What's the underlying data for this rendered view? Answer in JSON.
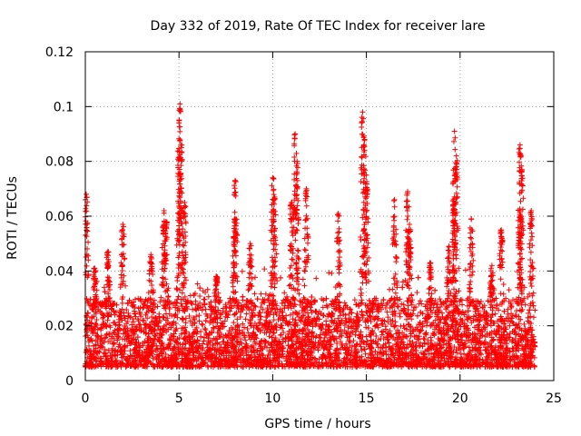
{
  "chart_data": {
    "type": "scatter",
    "title": "Day 332 of 2019, Rate Of TEC Index for receiver lare",
    "xlabel": "GPS time / hours",
    "ylabel": "ROTI / TECUs",
    "xlim": [
      0,
      25
    ],
    "ylim": [
      0,
      0.12
    ],
    "xticks": [
      0,
      5,
      10,
      15,
      20,
      25
    ],
    "xtick_labels": [
      "0",
      "5",
      "10",
      "15",
      "20",
      "25"
    ],
    "yticks": [
      0,
      0.02,
      0.04,
      0.06,
      0.08,
      0.1,
      0.12
    ],
    "ytick_labels": [
      "0",
      "0.02",
      "0.04",
      "0.06",
      "0.08",
      "0.1",
      "0.12"
    ],
    "grid": true,
    "marker": "+",
    "series": [
      {
        "name": "ROTI",
        "color": "#ff0000",
        "x_range": [
          0,
          24
        ],
        "baseline_band": [
          0.005,
          0.03
        ],
        "peaks": [
          {
            "x": 0.05,
            "y": 0.068
          },
          {
            "x": 0.5,
            "y": 0.041
          },
          {
            "x": 1.2,
            "y": 0.047
          },
          {
            "x": 2.0,
            "y": 0.057
          },
          {
            "x": 3.5,
            "y": 0.046
          },
          {
            "x": 4.2,
            "y": 0.062
          },
          {
            "x": 4.3,
            "y": 0.058
          },
          {
            "x": 5.0,
            "y": 0.094
          },
          {
            "x": 5.05,
            "y": 0.101
          },
          {
            "x": 5.1,
            "y": 0.086
          },
          {
            "x": 5.3,
            "y": 0.065
          },
          {
            "x": 7.0,
            "y": 0.038
          },
          {
            "x": 8.0,
            "y": 0.073
          },
          {
            "x": 8.0,
            "y": 0.059
          },
          {
            "x": 8.8,
            "y": 0.05
          },
          {
            "x": 10.0,
            "y": 0.074
          },
          {
            "x": 10.1,
            "y": 0.067
          },
          {
            "x": 11.0,
            "y": 0.065
          },
          {
            "x": 11.2,
            "y": 0.09
          },
          {
            "x": 11.3,
            "y": 0.08
          },
          {
            "x": 11.8,
            "y": 0.07
          },
          {
            "x": 13.5,
            "y": 0.061
          },
          {
            "x": 14.8,
            "y": 0.098
          },
          {
            "x": 14.9,
            "y": 0.088
          },
          {
            "x": 15.0,
            "y": 0.075
          },
          {
            "x": 16.5,
            "y": 0.066
          },
          {
            "x": 17.2,
            "y": 0.069
          },
          {
            "x": 17.3,
            "y": 0.057
          },
          {
            "x": 18.4,
            "y": 0.043
          },
          {
            "x": 19.4,
            "y": 0.049
          },
          {
            "x": 19.7,
            "y": 0.091
          },
          {
            "x": 19.8,
            "y": 0.082
          },
          {
            "x": 19.7,
            "y": 0.067
          },
          {
            "x": 20.6,
            "y": 0.059
          },
          {
            "x": 21.7,
            "y": 0.042
          },
          {
            "x": 22.2,
            "y": 0.055
          },
          {
            "x": 23.2,
            "y": 0.086
          },
          {
            "x": 23.3,
            "y": 0.077
          },
          {
            "x": 23.2,
            "y": 0.062
          },
          {
            "x": 23.8,
            "y": 0.062
          }
        ]
      }
    ]
  }
}
